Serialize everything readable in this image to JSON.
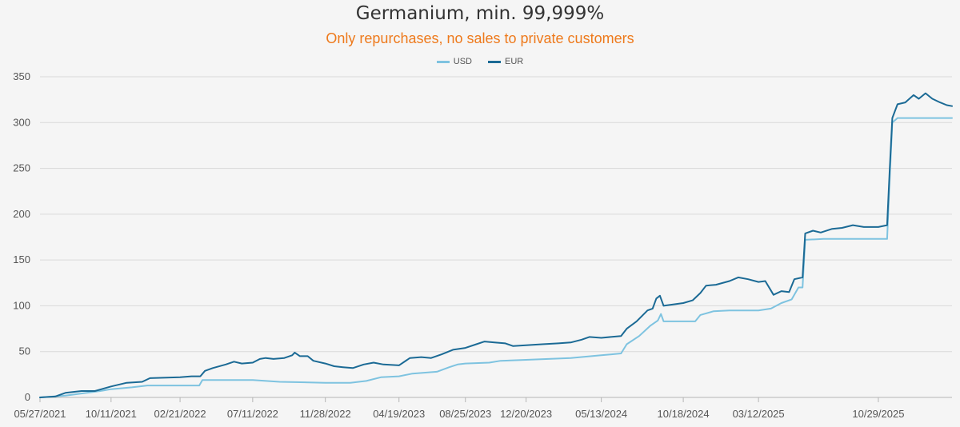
{
  "chart_data": {
    "type": "line",
    "title": "Germanium, min. 99,999%",
    "subtitle": "Only repurchases, no sales to private customers",
    "xlabel": "",
    "ylabel": "",
    "ylim": [
      0,
      350
    ],
    "yticks": [
      0,
      50,
      100,
      150,
      200,
      250,
      300,
      350
    ],
    "xticks": [
      "05/27/2021",
      "10/11/2021",
      "02/21/2022",
      "07/11/2022",
      "11/28/2022",
      "04/19/2023",
      "08/25/2023",
      "12/20/2023",
      "05/13/2024",
      "10/18/2024",
      "03/12/2025",
      "10/29/2025"
    ],
    "x_range": [
      "05/27/2021",
      "03/20/2026"
    ],
    "grid": "horizontal",
    "legend": "top-center",
    "series": [
      {
        "name": "USD",
        "color": "#7ec3e0",
        "points": [
          [
            "05/27/2021",
            0
          ],
          [
            "07/15/2021",
            2
          ],
          [
            "08/25/2021",
            5
          ],
          [
            "09/20/2021",
            7
          ],
          [
            "10/11/2021",
            9
          ],
          [
            "11/20/2021",
            11
          ],
          [
            "12/20/2021",
            13
          ],
          [
            "03/30/2022",
            13
          ],
          [
            "04/05/2022",
            19
          ],
          [
            "07/11/2022",
            19
          ],
          [
            "09/01/2022",
            17
          ],
          [
            "11/28/2022",
            16
          ],
          [
            "01/15/2023",
            16
          ],
          [
            "02/15/2023",
            18
          ],
          [
            "03/15/2023",
            22
          ],
          [
            "04/19/2023",
            23
          ],
          [
            "05/15/2023",
            26
          ],
          [
            "07/01/2023",
            28
          ],
          [
            "07/25/2023",
            33
          ],
          [
            "08/10/2023",
            36
          ],
          [
            "08/25/2023",
            37
          ],
          [
            "10/10/2023",
            38
          ],
          [
            "11/01/2023",
            40
          ],
          [
            "12/20/2023",
            41
          ],
          [
            "03/15/2024",
            43
          ],
          [
            "05/13/2024",
            46
          ],
          [
            "06/20/2024",
            48
          ],
          [
            "07/01/2024",
            58
          ],
          [
            "07/25/2024",
            67
          ],
          [
            "08/15/2024",
            78
          ],
          [
            "08/30/2024",
            84
          ],
          [
            "09/05/2024",
            91
          ],
          [
            "09/10/2024",
            83
          ],
          [
            "10/18/2024",
            83
          ],
          [
            "11/10/2024",
            83
          ],
          [
            "11/20/2024",
            90
          ],
          [
            "12/15/2024",
            94
          ],
          [
            "01/15/2025",
            95
          ],
          [
            "03/12/2025",
            95
          ],
          [
            "04/05/2025",
            97
          ],
          [
            "04/25/2025",
            103
          ],
          [
            "05/15/2025",
            107
          ],
          [
            "05/28/2025",
            120
          ],
          [
            "06/05/2025",
            120
          ],
          [
            "06/10/2025",
            172
          ],
          [
            "07/15/2025",
            173
          ],
          [
            "10/29/2025",
            173
          ],
          [
            "11/15/2025",
            173
          ],
          [
            "11/20/2025",
            240
          ],
          [
            "11/25/2025",
            300
          ],
          [
            "12/05/2025",
            305
          ],
          [
            "03/20/2026",
            305
          ]
        ]
      },
      {
        "name": "EUR",
        "color": "#1b6a95",
        "points": [
          [
            "05/27/2021",
            0
          ],
          [
            "06/25/2021",
            1
          ],
          [
            "07/15/2021",
            5
          ],
          [
            "08/15/2021",
            7
          ],
          [
            "09/10/2021",
            7
          ],
          [
            "10/11/2021",
            12
          ],
          [
            "11/10/2021",
            16
          ],
          [
            "12/10/2021",
            17
          ],
          [
            "12/25/2021",
            21
          ],
          [
            "02/21/2022",
            22
          ],
          [
            "03/15/2022",
            23
          ],
          [
            "04/01/2022",
            23
          ],
          [
            "04/10/2022",
            29
          ],
          [
            "04/25/2022",
            32
          ],
          [
            "05/20/2022",
            36
          ],
          [
            "06/05/2022",
            39
          ],
          [
            "06/20/2022",
            37
          ],
          [
            "07/11/2022",
            38
          ],
          [
            "07/25/2022",
            42
          ],
          [
            "08/05/2022",
            43
          ],
          [
            "08/20/2022",
            42
          ],
          [
            "09/10/2022",
            43
          ],
          [
            "09/25/2022",
            46
          ],
          [
            "09/30/2022",
            49
          ],
          [
            "10/10/2022",
            45
          ],
          [
            "10/25/2022",
            45
          ],
          [
            "11/05/2022",
            40
          ],
          [
            "11/28/2022",
            37
          ],
          [
            "12/15/2022",
            34
          ],
          [
            "01/01/2023",
            33
          ],
          [
            "01/20/2023",
            32
          ],
          [
            "02/10/2023",
            36
          ],
          [
            "03/01/2023",
            38
          ],
          [
            "03/20/2023",
            36
          ],
          [
            "04/19/2023",
            35
          ],
          [
            "05/10/2023",
            43
          ],
          [
            "06/01/2023",
            44
          ],
          [
            "06/20/2023",
            43
          ],
          [
            "07/10/2023",
            47
          ],
          [
            "08/01/2023",
            52
          ],
          [
            "08/25/2023",
            54
          ],
          [
            "09/15/2023",
            58
          ],
          [
            "10/01/2023",
            61
          ],
          [
            "10/20/2023",
            60
          ],
          [
            "11/10/2023",
            59
          ],
          [
            "11/25/2023",
            56
          ],
          [
            "12/20/2023",
            57
          ],
          [
            "01/20/2024",
            58
          ],
          [
            "02/20/2024",
            59
          ],
          [
            "03/15/2024",
            60
          ],
          [
            "04/05/2024",
            63
          ],
          [
            "04/20/2024",
            66
          ],
          [
            "05/13/2024",
            65
          ],
          [
            "06/20/2024",
            67
          ],
          [
            "07/01/2024",
            75
          ],
          [
            "07/20/2024",
            83
          ],
          [
            "08/10/2024",
            95
          ],
          [
            "08/20/2024",
            97
          ],
          [
            "08/27/2024",
            108
          ],
          [
            "09/03/2024",
            111
          ],
          [
            "09/10/2024",
            100
          ],
          [
            "10/18/2024",
            103
          ],
          [
            "11/05/2024",
            106
          ],
          [
            "11/20/2024",
            114
          ],
          [
            "12/01/2024",
            122
          ],
          [
            "12/20/2024",
            123
          ],
          [
            "01/15/2025",
            127
          ],
          [
            "02/01/2025",
            131
          ],
          [
            "02/20/2025",
            129
          ],
          [
            "03/12/2025",
            126
          ],
          [
            "03/25/2025",
            127
          ],
          [
            "04/10/2025",
            112
          ],
          [
            "04/25/2025",
            116
          ],
          [
            "05/10/2025",
            115
          ],
          [
            "05/20/2025",
            129
          ],
          [
            "06/05/2025",
            131
          ],
          [
            "06/10/2025",
            179
          ],
          [
            "06/25/2025",
            182
          ],
          [
            "07/10/2025",
            180
          ],
          [
            "08/01/2025",
            184
          ],
          [
            "08/20/2025",
            185
          ],
          [
            "09/10/2025",
            188
          ],
          [
            "10/01/2025",
            186
          ],
          [
            "10/29/2025",
            186
          ],
          [
            "11/15/2025",
            188
          ],
          [
            "11/20/2025",
            250
          ],
          [
            "11/25/2025",
            305
          ],
          [
            "12/05/2025",
            320
          ],
          [
            "12/20/2025",
            322
          ],
          [
            "01/05/2026",
            330
          ],
          [
            "01/15/2026",
            326
          ],
          [
            "01/28/2026",
            332
          ],
          [
            "02/10/2026",
            326
          ],
          [
            "02/25/2026",
            322
          ],
          [
            "03/10/2026",
            319
          ],
          [
            "03/20/2026",
            318
          ]
        ]
      }
    ]
  }
}
